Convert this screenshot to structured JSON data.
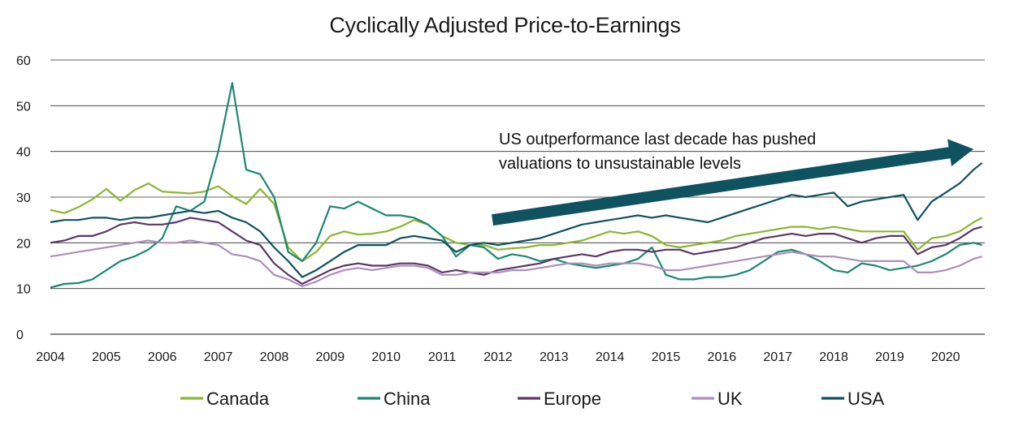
{
  "chart_data": {
    "type": "line",
    "title": "Cyclically Adjusted Price-to-Earnings",
    "xlabel": "",
    "ylabel": "",
    "ylim": [
      0,
      60
    ],
    "xlim": [
      2004.0,
      2020.7
    ],
    "yticks": [
      "0",
      "10",
      "20",
      "30",
      "40",
      "50",
      "60"
    ],
    "xticks": [
      "2004",
      "2005",
      "2006",
      "2007",
      "2008",
      "2009",
      "2010",
      "2011",
      "2012",
      "2013",
      "2014",
      "2015",
      "2016",
      "2017",
      "2018",
      "2019",
      "2020"
    ],
    "grid": "horizontal",
    "legend_position": "bottom",
    "annotation": {
      "lines": [
        "US outperformance last decade has pushed",
        "valuations to unsustainable levels"
      ],
      "arrow_from": [
        2011.9,
        25.0
      ],
      "arrow_to": [
        2020.5,
        40.5
      ],
      "color": "#0f5260"
    },
    "x": [
      2004.0,
      2004.25,
      2004.5,
      2004.75,
      2005.0,
      2005.25,
      2005.5,
      2005.75,
      2006.0,
      2006.25,
      2006.5,
      2006.75,
      2007.0,
      2007.25,
      2007.5,
      2007.75,
      2008.0,
      2008.25,
      2008.5,
      2008.75,
      2009.0,
      2009.25,
      2009.5,
      2009.75,
      2010.0,
      2010.25,
      2010.5,
      2010.75,
      2011.0,
      2011.25,
      2011.5,
      2011.75,
      2012.0,
      2012.25,
      2012.5,
      2012.75,
      2013.0,
      2013.25,
      2013.5,
      2013.75,
      2014.0,
      2014.25,
      2014.5,
      2014.75,
      2015.0,
      2015.25,
      2015.5,
      2015.75,
      2016.0,
      2016.25,
      2016.5,
      2016.75,
      2017.0,
      2017.25,
      2017.5,
      2017.75,
      2018.0,
      2018.25,
      2018.5,
      2018.75,
      2019.0,
      2019.25,
      2019.5,
      2019.75,
      2020.0,
      2020.25,
      2020.5,
      2020.65
    ],
    "series": [
      {
        "name": "Canada",
        "color": "#8db52f",
        "values": [
          27.2,
          26.5,
          27.8,
          29.5,
          31.8,
          29.2,
          31.5,
          33.0,
          31.2,
          31.0,
          30.8,
          31.2,
          32.4,
          30.2,
          28.5,
          31.8,
          28.5,
          19.0,
          16.0,
          18.0,
          21.5,
          22.5,
          21.8,
          22.0,
          22.5,
          23.5,
          25.0,
          24.0,
          21.5,
          20.0,
          19.5,
          19.5,
          18.5,
          18.8,
          19.0,
          19.5,
          19.5,
          20.0,
          20.5,
          21.5,
          22.5,
          22.0,
          22.5,
          21.5,
          19.5,
          19.0,
          19.5,
          20.0,
          20.5,
          21.5,
          22.0,
          22.5,
          23.0,
          23.5,
          23.5,
          23.0,
          23.5,
          23.0,
          22.5,
          22.5,
          22.5,
          22.5,
          18.5,
          21.0,
          21.5,
          22.5,
          24.5,
          25.5
        ]
      },
      {
        "name": "China",
        "color": "#1c8872",
        "values": [
          10.2,
          11.0,
          11.2,
          12.0,
          14.0,
          16.0,
          17.0,
          18.5,
          21.0,
          28.0,
          27.0,
          29.0,
          40.0,
          55.0,
          36.0,
          35.0,
          30.0,
          18.0,
          16.0,
          20.0,
          28.0,
          27.5,
          29.0,
          27.5,
          26.0,
          26.0,
          25.5,
          24.0,
          21.5,
          17.0,
          19.5,
          19.0,
          16.5,
          17.5,
          17.0,
          16.0,
          16.5,
          15.5,
          15.0,
          14.5,
          15.0,
          15.5,
          16.5,
          19.0,
          13.0,
          12.0,
          12.0,
          12.5,
          12.5,
          13.0,
          14.0,
          16.0,
          18.0,
          18.5,
          17.5,
          16.0,
          14.0,
          13.5,
          15.5,
          15.0,
          14.0,
          14.5,
          15.0,
          16.0,
          17.5,
          19.5,
          20.0,
          19.5
        ]
      },
      {
        "name": "Europe",
        "color": "#5b3768",
        "values": [
          20.0,
          20.5,
          21.5,
          21.5,
          22.5,
          24.0,
          24.5,
          24.0,
          24.0,
          24.5,
          25.5,
          25.0,
          24.5,
          22.5,
          20.5,
          19.5,
          15.5,
          13.0,
          11.0,
          12.5,
          14.0,
          15.0,
          15.5,
          15.0,
          15.0,
          15.5,
          15.5,
          15.0,
          13.5,
          14.0,
          13.5,
          13.0,
          14.0,
          14.5,
          15.0,
          15.5,
          16.5,
          17.0,
          17.5,
          17.0,
          18.0,
          18.5,
          18.5,
          18.0,
          18.5,
          18.5,
          17.5,
          18.0,
          18.5,
          19.0,
          20.0,
          21.0,
          21.5,
          22.0,
          21.5,
          22.0,
          22.0,
          21.0,
          20.0,
          21.0,
          21.5,
          21.5,
          17.5,
          19.0,
          19.5,
          21.0,
          23.0,
          23.5
        ]
      },
      {
        "name": "UK",
        "color": "#ad8ebc",
        "values": [
          17.0,
          17.5,
          18.0,
          18.5,
          19.0,
          19.5,
          20.0,
          20.5,
          20.0,
          20.0,
          20.5,
          20.0,
          19.5,
          17.5,
          17.0,
          16.0,
          13.0,
          12.0,
          10.5,
          11.5,
          13.0,
          14.0,
          14.5,
          14.0,
          14.5,
          15.0,
          15.0,
          14.5,
          13.0,
          13.0,
          13.5,
          13.5,
          13.5,
          14.0,
          14.0,
          14.5,
          15.0,
          15.5,
          15.5,
          15.0,
          15.5,
          15.5,
          15.5,
          15.0,
          14.0,
          14.0,
          14.5,
          15.0,
          15.5,
          16.0,
          16.5,
          17.0,
          17.5,
          18.0,
          17.5,
          17.0,
          17.0,
          16.5,
          16.0,
          16.0,
          16.0,
          16.0,
          13.5,
          13.5,
          14.0,
          15.0,
          16.5,
          17.0
        ]
      },
      {
        "name": "USA",
        "color": "#0f5260",
        "values": [
          24.5,
          25.0,
          25.0,
          25.5,
          25.5,
          25.0,
          25.5,
          25.5,
          26.0,
          26.5,
          27.0,
          26.5,
          27.0,
          25.5,
          24.5,
          22.5,
          19.0,
          16.0,
          12.5,
          14.0,
          16.0,
          18.0,
          19.5,
          19.5,
          19.5,
          21.0,
          21.5,
          21.0,
          20.5,
          18.0,
          19.5,
          20.0,
          19.5,
          20.0,
          20.5,
          21.0,
          22.0,
          23.0,
          24.0,
          24.5,
          25.0,
          25.5,
          26.0,
          25.5,
          26.0,
          25.5,
          25.0,
          24.5,
          25.5,
          26.5,
          27.5,
          28.5,
          29.5,
          30.5,
          30.0,
          30.5,
          31.0,
          28.0,
          29.0,
          29.5,
          30.0,
          30.5,
          25.0,
          29.0,
          31.0,
          33.0,
          36.0,
          37.5
        ]
      }
    ]
  }
}
